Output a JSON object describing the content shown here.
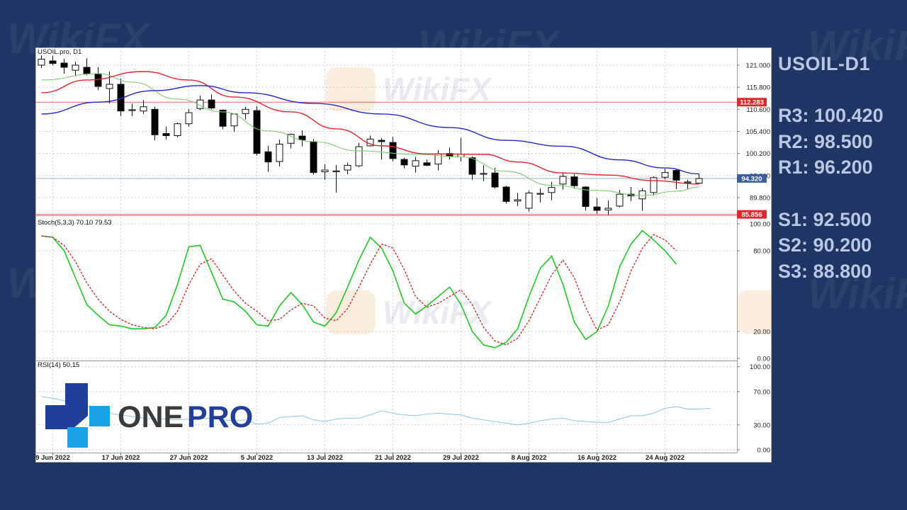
{
  "title": "USOIL-D1",
  "levels": [
    {
      "label": "R3:",
      "value": "100.420"
    },
    {
      "label": "R2:",
      "value": "98.500"
    },
    {
      "label": "R1:",
      "value": "96.200"
    },
    {
      "label": "S1:",
      "value": "92.500"
    },
    {
      "label": "S2:",
      "value": "90.200"
    },
    {
      "label": "S3:",
      "value": "88.800"
    }
  ],
  "watermark": "WikiFX",
  "logo": {
    "one": "ONE",
    "pro": "PRO"
  },
  "colors": {
    "background": "#1f3563",
    "ma_fast": "#7ccf6f",
    "ma_mid": "#e8222c",
    "ma_slow": "#1f28c9",
    "stoch_main": "#1ec81e",
    "stoch_signal": "#d41f1f",
    "rsi": "#8cc4ee",
    "hline": "#e86060",
    "current_line": "#9fb3cf",
    "current_tag": "#3b5f9c",
    "level_tag": "#e4262c",
    "logo_one": "#3b3b3b",
    "logo_pro": "#223f9a",
    "logo_mark_dark": "#1f3f9a",
    "logo_mark_light": "#19a3e8"
  },
  "chart_data": [
    {
      "type": "candlestick",
      "label": "USOIL.pro, D1",
      "ylim": [
        85.0,
        124.5
      ],
      "yticks": [
        "121.000",
        "115.800",
        "110.600",
        "105.400",
        "100.200",
        "95.000",
        "89.800"
      ],
      "ytick_values": [
        121.0,
        115.8,
        110.6,
        105.4,
        100.2,
        95.0,
        89.8
      ],
      "xticks": [
        "9 Jun 2022",
        "17 Jun 2022",
        "27 Jun 2022",
        "5 Jul 2022",
        "13 Jul 2022",
        "21 Jul 2022",
        "29 Jul 2022",
        "8 Aug 2022",
        "16 Aug 2022",
        "24 Aug 2022"
      ],
      "xtick_index": [
        1,
        7,
        13,
        19,
        25,
        31,
        37,
        43,
        49,
        55
      ],
      "candles": [
        {
          "date": "8 Jun 2022",
          "o": 121.0,
          "h": 123.3,
          "l": 120.3,
          "c": 122.4
        },
        {
          "date": "9 Jun 2022",
          "o": 122.0,
          "h": 123.2,
          "l": 121.0,
          "c": 121.4
        },
        {
          "date": "10 Jun 2022",
          "o": 121.5,
          "h": 122.5,
          "l": 119.0,
          "c": 120.5
        },
        {
          "date": "13 Jun 2022",
          "o": 119.8,
          "h": 121.8,
          "l": 118.4,
          "c": 121.0
        },
        {
          "date": "14 Jun 2022",
          "o": 120.5,
          "h": 122.6,
          "l": 118.6,
          "c": 119.0
        },
        {
          "date": "15 Jun 2022",
          "o": 119.0,
          "h": 120.5,
          "l": 115.1,
          "c": 116.0
        },
        {
          "date": "16 Jun 2022",
          "o": 115.5,
          "h": 119.5,
          "l": 112.0,
          "c": 116.5
        },
        {
          "date": "17 Jun 2022",
          "o": 116.5,
          "h": 117.8,
          "l": 109.0,
          "c": 110.2
        },
        {
          "date": "20 Jun 2022",
          "o": 110.3,
          "h": 112.0,
          "l": 109.0,
          "c": 110.5
        },
        {
          "date": "21 Jun 2022",
          "o": 110.2,
          "h": 112.8,
          "l": 109.5,
          "c": 111.2
        },
        {
          "date": "22 Jun 2022",
          "o": 110.6,
          "h": 111.2,
          "l": 103.3,
          "c": 104.6
        },
        {
          "date": "23 Jun 2022",
          "o": 104.9,
          "h": 106.5,
          "l": 103.5,
          "c": 104.4
        },
        {
          "date": "24 Jun 2022",
          "o": 104.4,
          "h": 107.5,
          "l": 104.0,
          "c": 107.2
        },
        {
          "date": "27 Jun 2022",
          "o": 107.2,
          "h": 110.6,
          "l": 106.5,
          "c": 109.8
        },
        {
          "date": "28 Jun 2022",
          "o": 110.8,
          "h": 113.8,
          "l": 110.4,
          "c": 112.8
        },
        {
          "date": "29 Jun 2022",
          "o": 112.8,
          "h": 114.1,
          "l": 110.6,
          "c": 110.9
        },
        {
          "date": "30 Jun 2022",
          "o": 110.4,
          "h": 110.6,
          "l": 106.0,
          "c": 106.6
        },
        {
          "date": "1 Jul 2022",
          "o": 106.7,
          "h": 109.3,
          "l": 105.3,
          "c": 109.5
        },
        {
          "date": "4 Jul 2022",
          "o": 109.6,
          "h": 111.2,
          "l": 108.2,
          "c": 110.6
        },
        {
          "date": "5 Jul 2022",
          "o": 110.3,
          "h": 111.3,
          "l": 99.7,
          "c": 100.2
        },
        {
          "date": "6 Jul 2022",
          "o": 100.6,
          "h": 102.0,
          "l": 95.9,
          "c": 98.2
        },
        {
          "date": "7 Jul 2022",
          "o": 98.3,
          "h": 103.5,
          "l": 97.1,
          "c": 102.4
        },
        {
          "date": "8 Jul 2022",
          "o": 102.6,
          "h": 104.9,
          "l": 101.4,
          "c": 104.7
        },
        {
          "date": "11 Jul 2022",
          "o": 104.3,
          "h": 105.7,
          "l": 101.9,
          "c": 103.4
        },
        {
          "date": "12 Jul 2022",
          "o": 103.0,
          "h": 103.6,
          "l": 95.2,
          "c": 95.7
        },
        {
          "date": "13 Jul 2022",
          "o": 95.9,
          "h": 97.7,
          "l": 94.0,
          "c": 96.3
        },
        {
          "date": "14 Jul 2022",
          "o": 96.0,
          "h": 97.5,
          "l": 91.0,
          "c": 96.1
        },
        {
          "date": "15 Jul 2022",
          "o": 96.3,
          "h": 98.0,
          "l": 95.3,
          "c": 97.4
        },
        {
          "date": "18 Jul 2022",
          "o": 97.3,
          "h": 102.7,
          "l": 97.0,
          "c": 101.8
        },
        {
          "date": "19 Jul 2022",
          "o": 102.0,
          "h": 104.4,
          "l": 101.9,
          "c": 103.6
        },
        {
          "date": "20 Jul 2022",
          "o": 103.3,
          "h": 103.8,
          "l": 98.8,
          "c": 103.0
        },
        {
          "date": "21 Jul 2022",
          "o": 102.8,
          "h": 104.1,
          "l": 98.4,
          "c": 99.0
        },
        {
          "date": "22 Jul 2022",
          "o": 98.8,
          "h": 99.2,
          "l": 96.7,
          "c": 97.5
        },
        {
          "date": "25 Jul 2022",
          "o": 97.2,
          "h": 99.4,
          "l": 95.7,
          "c": 98.5
        },
        {
          "date": "26 Jul 2022",
          "o": 98.0,
          "h": 98.8,
          "l": 97.2,
          "c": 97.4
        },
        {
          "date": "27 Jul 2022",
          "o": 97.7,
          "h": 101.0,
          "l": 96.2,
          "c": 100.1
        },
        {
          "date": "28 Jul 2022",
          "o": 100.2,
          "h": 101.6,
          "l": 98.8,
          "c": 99.6
        },
        {
          "date": "29 Jul 2022",
          "o": 99.4,
          "h": 103.9,
          "l": 98.3,
          "c": 100.0
        },
        {
          "date": "1 Aug 2022",
          "o": 99.2,
          "h": 99.5,
          "l": 94.0,
          "c": 95.3
        },
        {
          "date": "2 Aug 2022",
          "o": 95.4,
          "h": 97.4,
          "l": 93.7,
          "c": 95.5
        },
        {
          "date": "3 Aug 2022",
          "o": 95.6,
          "h": 96.8,
          "l": 91.9,
          "c": 92.3
        },
        {
          "date": "4 Aug 2022",
          "o": 92.3,
          "h": 92.6,
          "l": 88.4,
          "c": 88.9
        },
        {
          "date": "5 Aug 2022",
          "o": 89.0,
          "h": 90.9,
          "l": 87.8,
          "c": 89.3
        },
        {
          "date": "8 Aug 2022",
          "o": 87.3,
          "h": 91.4,
          "l": 86.5,
          "c": 90.9
        },
        {
          "date": "9 Aug 2022",
          "o": 90.8,
          "h": 92.0,
          "l": 88.7,
          "c": 90.8
        },
        {
          "date": "10 Aug 2022",
          "o": 91.0,
          "h": 93.5,
          "l": 89.2,
          "c": 92.2
        },
        {
          "date": "11 Aug 2022",
          "o": 93.0,
          "h": 95.8,
          "l": 91.7,
          "c": 94.8
        },
        {
          "date": "12 Aug 2022",
          "o": 94.7,
          "h": 95.4,
          "l": 91.9,
          "c": 92.6
        },
        {
          "date": "15 Aug 2022",
          "o": 92.3,
          "h": 92.5,
          "l": 86.8,
          "c": 87.7
        },
        {
          "date": "16 Aug 2022",
          "o": 87.6,
          "h": 89.7,
          "l": 86.0,
          "c": 86.8
        },
        {
          "date": "17 Aug 2022",
          "o": 86.9,
          "h": 89.1,
          "l": 85.7,
          "c": 87.3
        },
        {
          "date": "18 Aug 2022",
          "o": 87.8,
          "h": 91.6,
          "l": 87.5,
          "c": 90.6
        },
        {
          "date": "19 Aug 2022",
          "o": 90.6,
          "h": 92.3,
          "l": 89.0,
          "c": 90.2
        },
        {
          "date": "22 Aug 2022",
          "o": 89.5,
          "h": 92.0,
          "l": 86.7,
          "c": 91.4
        },
        {
          "date": "23 Aug 2022",
          "o": 91.0,
          "h": 94.8,
          "l": 90.3,
          "c": 94.5
        },
        {
          "date": "24 Aug 2022",
          "o": 94.6,
          "h": 96.6,
          "l": 94.1,
          "c": 95.7
        },
        {
          "date": "25 Aug 2022",
          "o": 96.2,
          "h": 96.4,
          "l": 91.8,
          "c": 93.9
        },
        {
          "date": "26 Aug 2022",
          "o": 93.4,
          "h": 94.0,
          "l": 91.8,
          "c": 93.5
        },
        {
          "date": "29 Aug 2022",
          "o": 93.2,
          "h": 95.4,
          "l": 93.0,
          "c": 94.3
        }
      ],
      "moving_averages": [
        {
          "name": "",
          "color": "#7ccf6f",
          "points": [
            [
              0,
              117.5
            ],
            [
              5,
              119.0
            ],
            [
              8,
              117.0
            ],
            [
              12,
              113.0
            ],
            [
              16,
              110.0
            ],
            [
              20,
              105.5
            ],
            [
              24,
              103.0
            ],
            [
              28,
              100.8
            ],
            [
              33,
              100.0
            ],
            [
              37,
              99.4
            ],
            [
              41,
              96.0
            ],
            [
              45,
              92.7
            ],
            [
              49,
              91.5
            ],
            [
              53,
              90.3
            ],
            [
              56,
              91.3
            ],
            [
              58,
              92.3
            ]
          ]
        },
        {
          "name": "",
          "color": "#e8222c",
          "points": [
            [
              0,
              114.5
            ],
            [
              4,
              117.5
            ],
            [
              9,
              119.5
            ],
            [
              13,
              117.5
            ],
            [
              17,
              113.5
            ],
            [
              22,
              110.0
            ],
            [
              26,
              106.0
            ],
            [
              30,
              102.0
            ],
            [
              34,
              100.1
            ],
            [
              39,
              100.0
            ],
            [
              42,
              98.2
            ],
            [
              46,
              95.6
            ],
            [
              50,
              95.1
            ],
            [
              54,
              93.8
            ],
            [
              58,
              93.0
            ]
          ]
        },
        {
          "name": "",
          "color": "#1f28c9",
          "points": [
            [
              0,
              109.5
            ],
            [
              5,
              112.3
            ],
            [
              10,
              115.0
            ],
            [
              14,
              116.2
            ],
            [
              18,
              114.5
            ],
            [
              24,
              112.0
            ],
            [
              30,
              109.5
            ],
            [
              36,
              106.3
            ],
            [
              41,
              103.3
            ],
            [
              46,
              101.9
            ],
            [
              51,
              98.7
            ],
            [
              55,
              96.8
            ],
            [
              58,
              95.4
            ]
          ]
        }
      ],
      "price_levels": [
        {
          "value": 112.283,
          "label": "112.283"
        },
        {
          "value": 85.856,
          "label": "85.856"
        }
      ],
      "current_price": {
        "value": 94.32,
        "label": "94.320"
      }
    },
    {
      "type": "line",
      "label": "Stoch(5,3,3) 70.10 79.53",
      "ylim": [
        0,
        100
      ],
      "yticks": [
        "100.00",
        "80.00",
        "20.00",
        "0.00"
      ],
      "ytick_values": [
        100,
        80,
        20,
        0
      ],
      "series": [
        {
          "name": "",
          "color": "#1ec81e",
          "style": "solid",
          "values": [
            91,
            90,
            80,
            60,
            40,
            32,
            25,
            24,
            22,
            22,
            23,
            32,
            55,
            83,
            84,
            64,
            44,
            42,
            35,
            25,
            24,
            39,
            49,
            40,
            27,
            24,
            34,
            53,
            73,
            90,
            82,
            65,
            41,
            33,
            39,
            46,
            53,
            40,
            20,
            10,
            8,
            12,
            22,
            46,
            67,
            76,
            55,
            27,
            14,
            20,
            39,
            68,
            85,
            95,
            88,
            80,
            70
          ]
        },
        {
          "name": "",
          "color": "#d41f1f",
          "style": "dashed",
          "values": [
            91,
            90,
            84,
            72,
            56,
            44,
            35,
            29,
            25,
            23,
            22,
            25,
            35,
            55,
            70,
            74,
            62,
            50,
            41,
            35,
            28,
            29,
            36,
            41,
            39,
            30,
            28,
            37,
            53,
            70,
            85,
            82,
            66,
            46,
            38,
            41,
            46,
            51,
            40,
            23,
            13,
            10,
            15,
            28,
            45,
            62,
            73,
            60,
            38,
            21,
            25,
            42,
            65,
            82,
            92,
            88,
            80
          ]
        }
      ]
    },
    {
      "type": "line",
      "label": "RSI(14) 50.15",
      "ylim": [
        0,
        100
      ],
      "yticks": [
        "100.00",
        "70.00",
        "30.00",
        "0.00"
      ],
      "ytick_values": [
        100,
        70,
        30,
        0
      ],
      "series": [
        {
          "name": "",
          "color": "#8cc4ee",
          "style": "solid",
          "values": [
            64,
            62,
            59,
            56,
            53,
            48,
            44,
            42,
            40,
            38,
            37,
            37,
            36,
            37,
            38,
            38,
            36,
            35,
            36,
            31,
            32,
            39,
            40,
            41,
            36,
            34,
            37,
            38,
            38,
            42,
            47,
            44,
            42,
            41,
            43,
            44,
            43,
            42,
            38,
            36,
            34,
            32,
            30,
            32,
            35,
            37,
            38,
            35,
            34,
            33,
            33,
            37,
            41,
            41,
            44,
            50,
            52,
            49,
            49,
            50
          ]
        }
      ]
    }
  ]
}
